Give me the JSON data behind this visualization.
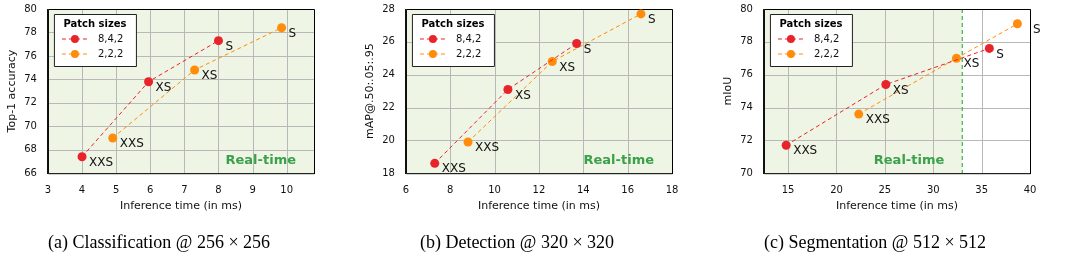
{
  "chart_data": [
    {
      "type": "line",
      "title": "(a) Classification @ 256 × 256",
      "xlabel": "Inference time (in ms)",
      "ylabel": "Top-1 accuracy",
      "legend_title": "Patch sizes",
      "legend": "top left",
      "grid": true,
      "marker": "circle",
      "line_style": "dashed",
      "xlim": [
        3,
        10.8
      ],
      "xticks": [
        3,
        4,
        5,
        6,
        7,
        8,
        9,
        10
      ],
      "ylim": [
        66,
        80
      ],
      "yticks": [
        66,
        68,
        70,
        72,
        74,
        76,
        78,
        80
      ],
      "series": [
        {
          "name": "8,4,2",
          "color": "#e8232a",
          "x": [
            4,
            5.95,
            8
          ],
          "values": [
            67.4,
            73.8,
            77.3
          ]
        },
        {
          "name": "2,2,2",
          "color": "#ff8c0a",
          "x": [
            4.9,
            7.3,
            9.85
          ],
          "values": [
            69.0,
            74.8,
            78.4
          ]
        }
      ],
      "bands": [
        {
          "axis": "x",
          "from": 3,
          "to": 10.8,
          "label": "Real-time",
          "color": "#eef5e4"
        }
      ],
      "annotations": [
        {
          "text": "XXS",
          "x": 4,
          "y": 67.4
        },
        {
          "text": "XS",
          "x": 5.95,
          "y": 73.8
        },
        {
          "text": "S",
          "x": 8,
          "y": 77.3
        },
        {
          "text": "XXS",
          "x": 4.9,
          "y": 69.0
        },
        {
          "text": "XS",
          "x": 7.3,
          "y": 74.8
        },
        {
          "text": "S",
          "x": 9.85,
          "y": 78.4
        }
      ]
    },
    {
      "type": "line",
      "title": "(b) Detection @ 320 × 320",
      "xlabel": "Inference time (in ms)",
      "ylabel": "mAP@.50:.05:.95",
      "legend_title": "Patch sizes",
      "legend": "top left",
      "grid": true,
      "marker": "circle",
      "line_style": "dashed",
      "xlim": [
        6,
        18
      ],
      "xticks": [
        6,
        8,
        10,
        12,
        14,
        16,
        18
      ],
      "ylim": [
        18,
        28
      ],
      "yticks": [
        18,
        20,
        22,
        24,
        26,
        28
      ],
      "series": [
        {
          "name": "8,4,2",
          "color": "#e8232a",
          "x": [
            7.3,
            10.6,
            13.7
          ],
          "values": [
            18.6,
            23.1,
            25.9
          ]
        },
        {
          "name": "2,2,2",
          "color": "#ff8c0a",
          "x": [
            8.8,
            12.6,
            16.6
          ],
          "values": [
            19.9,
            24.8,
            27.7
          ]
        }
      ],
      "bands": [
        {
          "axis": "x",
          "from": 6,
          "to": 18,
          "label": "Real-time",
          "color": "#eef5e4"
        }
      ],
      "annotations": [
        {
          "text": "XXS",
          "x": 7.3,
          "y": 18.6
        },
        {
          "text": "XS",
          "x": 10.6,
          "y": 23.1
        },
        {
          "text": "S",
          "x": 13.7,
          "y": 25.9
        },
        {
          "text": "XXS",
          "x": 8.8,
          "y": 19.9
        },
        {
          "text": "XS",
          "x": 12.6,
          "y": 24.8
        },
        {
          "text": "S",
          "x": 16.6,
          "y": 27.7
        }
      ]
    },
    {
      "type": "line",
      "title": "(c) Segmentation @ 512 × 512",
      "xlabel": "Inference time (in ms)",
      "ylabel": "mIoU",
      "legend_title": "Patch sizes",
      "legend": "top left",
      "grid": true,
      "marker": "circle",
      "line_style": "dashed",
      "xlim": [
        12.5,
        40
      ],
      "xticks": [
        15,
        20,
        25,
        30,
        35,
        40
      ],
      "ylim": [
        70,
        80
      ],
      "yticks": [
        70,
        72,
        74,
        76,
        78,
        80
      ],
      "series": [
        {
          "name": "8,4,2",
          "color": "#e8232a",
          "x": [
            14.8,
            25.1,
            35.8
          ],
          "values": [
            71.7,
            75.4,
            77.6
          ]
        },
        {
          "name": "2,2,2",
          "color": "#ff8c0a",
          "x": [
            22.3,
            32.4,
            38.7
          ],
          "values": [
            73.6,
            77.0,
            79.1
          ]
        }
      ],
      "bands": [
        {
          "axis": "x",
          "from": 12.5,
          "to": 33,
          "label": "Real-time",
          "color": "#eef5e4"
        }
      ],
      "ref_lines": [
        {
          "axis": "x",
          "value": 33,
          "color": "#3cb44b",
          "line_style": "dashed"
        }
      ],
      "annotations": [
        {
          "text": "XXS",
          "x": 14.8,
          "y": 71.7
        },
        {
          "text": "XS",
          "x": 25.1,
          "y": 75.4
        },
        {
          "text": "S",
          "x": 35.8,
          "y": 77.6
        },
        {
          "text": "XXS",
          "x": 22.3,
          "y": 73.6
        },
        {
          "text": "XS",
          "x": 32.4,
          "y": 77.0
        },
        {
          "text": "S",
          "x": 38.7,
          "y": 79.1
        }
      ]
    }
  ]
}
